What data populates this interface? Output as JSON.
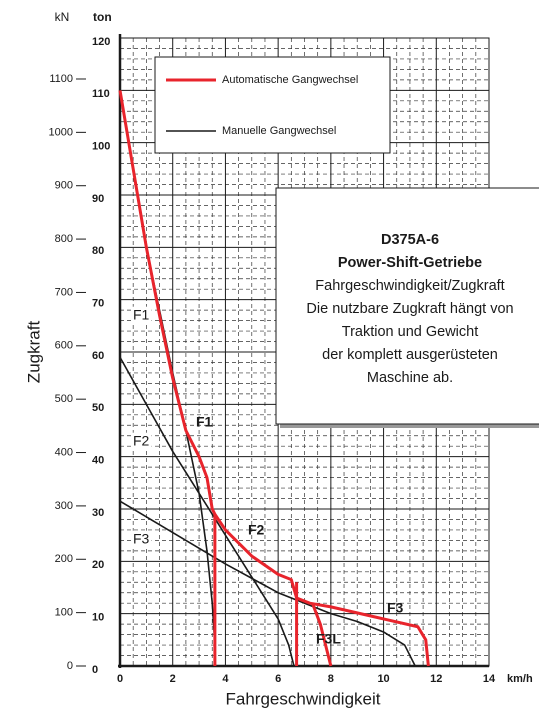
{
  "chart_data": {
    "type": "line",
    "x_unit_top": "kN",
    "y_unit": "ton",
    "ylabel": "Zugkraft",
    "xlabel": "Fahrgeschwindigkeit",
    "x_unit": "km/h",
    "xlim": [
      0,
      14
    ],
    "xticks": [
      0,
      2,
      4,
      6,
      8,
      10,
      12,
      14
    ],
    "ylim": [
      0,
      120
    ],
    "yticks": [
      0,
      10,
      20,
      30,
      40,
      50,
      60,
      70,
      80,
      90,
      100,
      110,
      120
    ],
    "y2lim": [
      0,
      1176.8
    ],
    "y2ticks": [
      0,
      100,
      200,
      300,
      400,
      500,
      600,
      700,
      800,
      900,
      1000,
      1100
    ],
    "grid": true,
    "series": [
      {
        "name": "Automatische Gangwechsel",
        "color": "#e8242c",
        "x": [
          0,
          0.5,
          1,
          1.5,
          2,
          2.5,
          3,
          3.3,
          3.5,
          3.6,
          3.6,
          null,
          3.6,
          4,
          5,
          6,
          6.5,
          6.7,
          7.2,
          8,
          10,
          11.3,
          11.6,
          11.7,
          null,
          6.7,
          6.7,
          null,
          7.3,
          7.6,
          8
        ],
        "values": [
          110,
          95,
          80,
          67,
          55,
          45,
          40,
          36,
          30,
          29,
          0,
          null,
          29,
          26,
          21,
          17.5,
          16.5,
          13,
          12,
          11.3,
          9,
          7.5,
          5,
          0,
          null,
          16,
          0,
          null,
          12,
          8,
          0
        ]
      },
      {
        "name": "Manuelle Gangwechsel",
        "color": "#1a1a1a",
        "x": [
          1,
          1.5,
          2,
          2.5,
          3,
          3.3,
          3.5,
          3.6,
          3.6,
          null,
          0,
          1,
          2,
          3,
          4,
          5,
          6,
          6.4,
          6.6,
          null,
          0,
          2,
          4,
          6,
          8,
          9,
          10,
          10.8,
          11.2
        ],
        "values": [
          80,
          68,
          56,
          45,
          33,
          22,
          12,
          4,
          0,
          null,
          59,
          50,
          41,
          33,
          25,
          17,
          9,
          4,
          0,
          null,
          31.5,
          25.5,
          19.5,
          14,
          10,
          8.5,
          6.5,
          4,
          0
        ]
      }
    ],
    "annotations": [
      "F1",
      "F2",
      "F3",
      "F1",
      "F2",
      "F3",
      "F3L"
    ],
    "info_box": [
      "D375A-6",
      "Power-Shift-Getriebe",
      "Fahrgeschwindigkeit/Zugkraft",
      "Die nutzbare Zugkraft hängt von",
      "Traktion und Gewicht",
      "der komplett ausgerüsteten",
      "Maschine ab."
    ]
  }
}
